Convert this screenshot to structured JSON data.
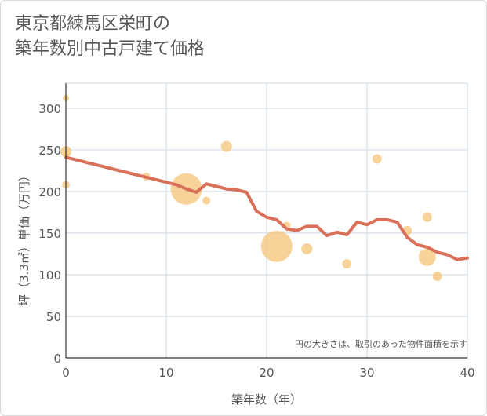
{
  "title_line1": "東京都練馬区栄町の",
  "title_line2": "築年数別中古戸建て価格",
  "chart_data": {
    "type": "scatter",
    "title": "東京都練馬区栄町の築年数別中古戸建て価格",
    "xlabel": "築年数（年）",
    "ylabel": "坪（3.3㎡）単価（万円）",
    "xlim": [
      0,
      40
    ],
    "ylim": [
      0,
      330
    ],
    "xticks": [
      0,
      10,
      20,
      30,
      40
    ],
    "yticks": [
      0,
      50,
      100,
      150,
      200,
      250,
      300
    ],
    "grid": true,
    "annotation": "円の大きさは、取引のあった物件面積を示す",
    "colors": {
      "bubble": "#f5c77e",
      "trend": "#d9705a",
      "grid": "#cbd9e3",
      "axis": "#555555"
    },
    "bubbles": [
      {
        "x": 0,
        "y": 312,
        "size": 4
      },
      {
        "x": 0,
        "y": 248,
        "size": 7
      },
      {
        "x": 0,
        "y": 244,
        "size": 4
      },
      {
        "x": 0,
        "y": 208,
        "size": 5
      },
      {
        "x": 8,
        "y": 218,
        "size": 5
      },
      {
        "x": 12,
        "y": 203,
        "size": 20
      },
      {
        "x": 14,
        "y": 189,
        "size": 5
      },
      {
        "x": 16,
        "y": 254,
        "size": 7
      },
      {
        "x": 21,
        "y": 134,
        "size": 20
      },
      {
        "x": 22,
        "y": 159,
        "size": 5
      },
      {
        "x": 24,
        "y": 131,
        "size": 7
      },
      {
        "x": 28,
        "y": 113,
        "size": 6
      },
      {
        "x": 31,
        "y": 239,
        "size": 6
      },
      {
        "x": 34,
        "y": 153,
        "size": 6
      },
      {
        "x": 36,
        "y": 169,
        "size": 6
      },
      {
        "x": 36,
        "y": 121,
        "size": 11
      },
      {
        "x": 37,
        "y": 98,
        "size": 6
      }
    ],
    "trend": {
      "x": [
        0,
        1,
        2,
        3,
        4,
        5,
        6,
        7,
        8,
        9,
        10,
        11,
        12,
        13,
        14,
        15,
        16,
        17,
        18,
        19,
        20,
        21,
        22,
        23,
        24,
        25,
        26,
        27,
        28,
        29,
        30,
        31,
        32,
        33,
        34,
        35,
        36,
        37,
        38,
        39,
        40
      ],
      "y": [
        241,
        238,
        235,
        232,
        229,
        226,
        223,
        220,
        217,
        214,
        211,
        208,
        203,
        199,
        209,
        206,
        203,
        202,
        199,
        176,
        169,
        166,
        155,
        153,
        158,
        158,
        147,
        151,
        148,
        163,
        160,
        166,
        166,
        163,
        145,
        136,
        133,
        127,
        124,
        118,
        120
      ]
    }
  }
}
